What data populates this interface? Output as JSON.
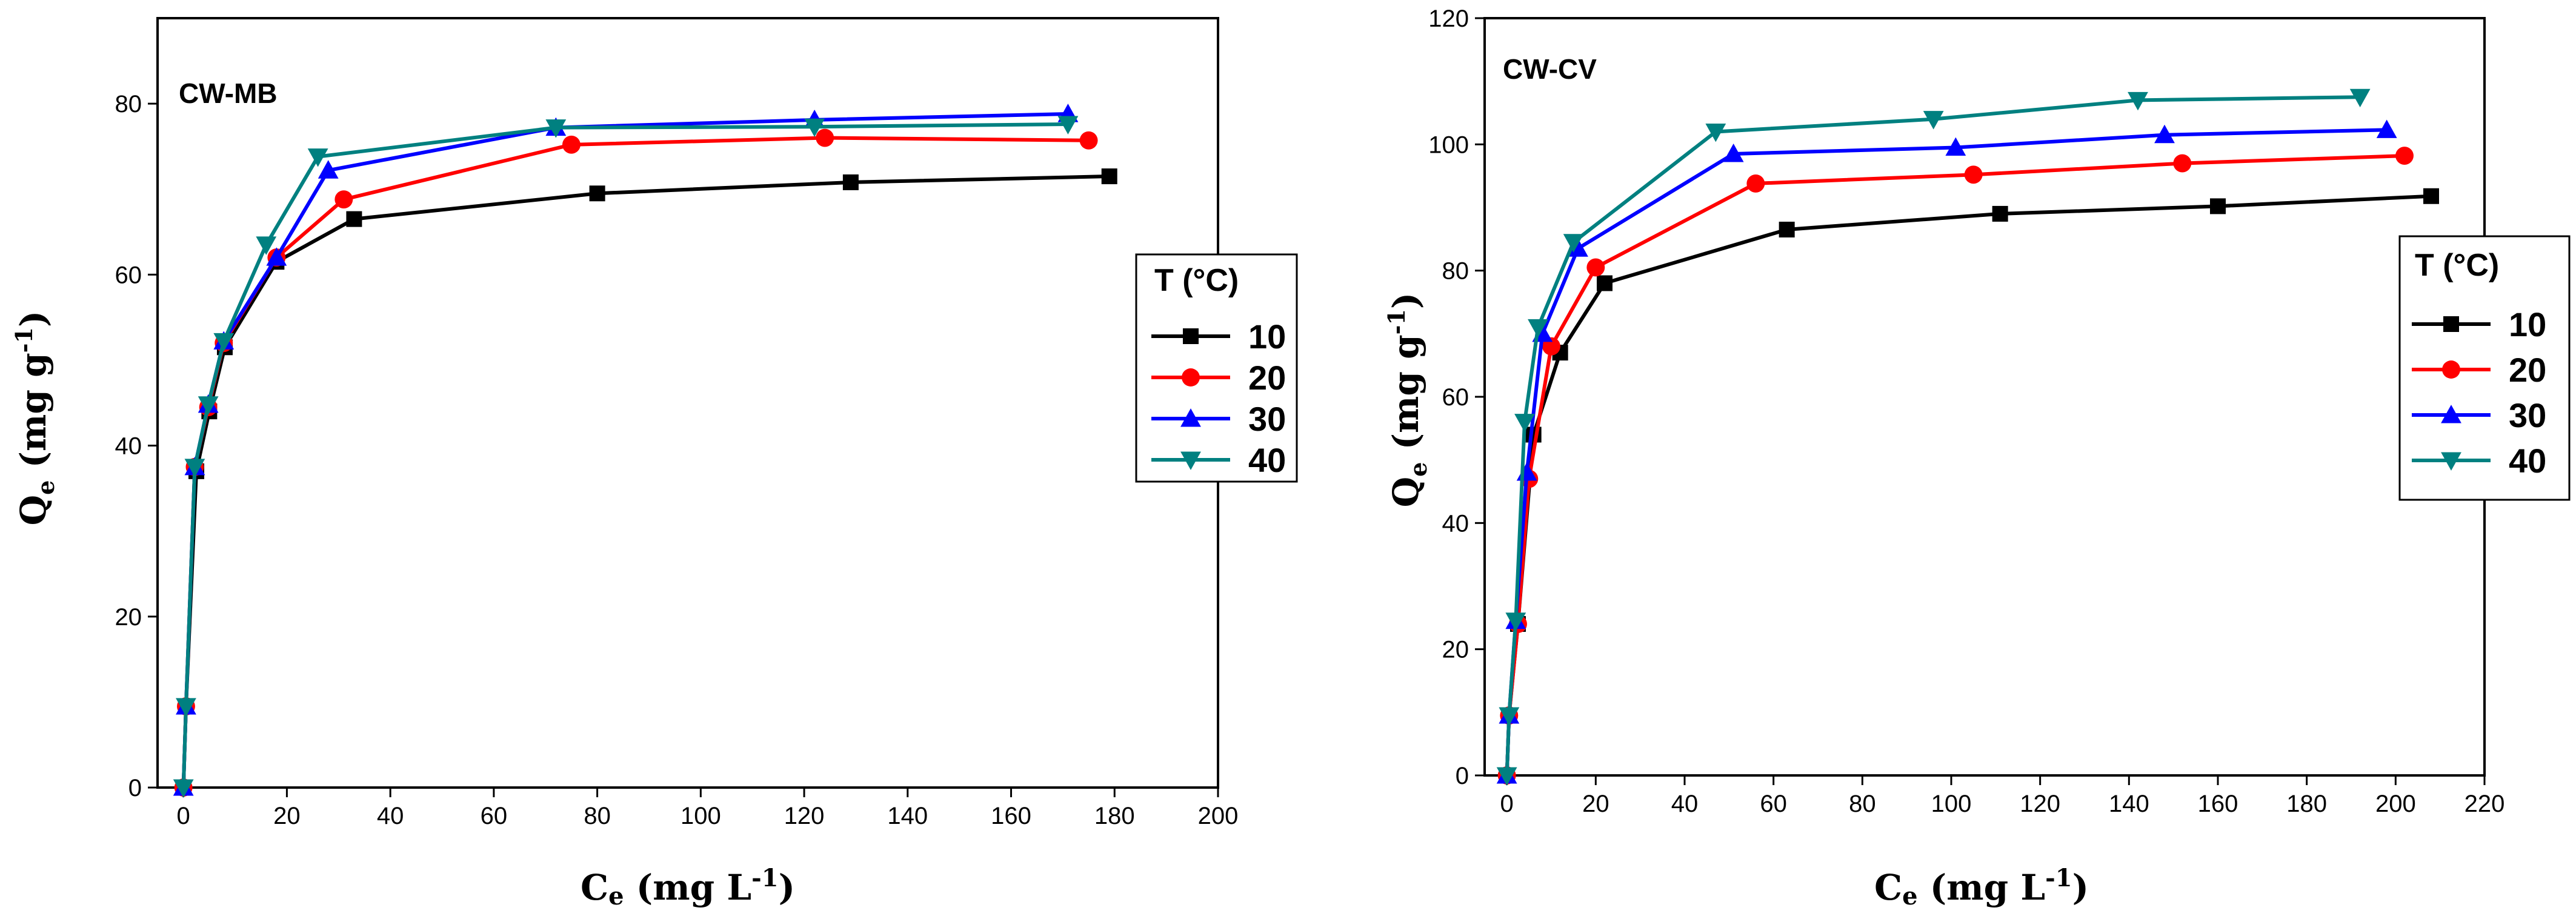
{
  "chart_data": [
    {
      "type": "line",
      "title": "CW-MB",
      "xlabel": "Ce (mg L-1)",
      "ylabel": "Qe (mg g-1)",
      "xlim": [
        -5,
        200
      ],
      "ylim": [
        0,
        90
      ],
      "xticks": [
        0,
        20,
        40,
        60,
        80,
        100,
        120,
        140,
        160,
        180,
        200
      ],
      "yticks": [
        0,
        20,
        40,
        60,
        80
      ],
      "legend_title": "T (°C)",
      "series": [
        {
          "name": "10",
          "color": "#000000",
          "marker": "square",
          "x": [
            0,
            0.5,
            2.5,
            5,
            8,
            18,
            33,
            80,
            129,
            179
          ],
          "y": [
            0,
            9.5,
            37,
            44,
            51.5,
            61.5,
            66.5,
            69.5,
            70.8,
            71.5
          ]
        },
        {
          "name": "20",
          "color": "#ff0000",
          "marker": "circle",
          "x": [
            0,
            0.5,
            2.2,
            4.8,
            7.8,
            18,
            31,
            75,
            124,
            175
          ],
          "y": [
            0,
            9.5,
            37.5,
            44.5,
            52,
            62,
            68.8,
            75.2,
            76,
            75.7
          ]
        },
        {
          "name": "30",
          "color": "#0000ff",
          "marker": "triangle-up",
          "x": [
            0,
            0.5,
            2.2,
            4.8,
            7.8,
            18,
            28,
            72,
            122,
            171
          ],
          "y": [
            0,
            9.5,
            37.5,
            44.8,
            52.2,
            62,
            72.2,
            77.2,
            78.1,
            78.8
          ]
        },
        {
          "name": "40",
          "color": "#008080",
          "marker": "triangle-down",
          "x": [
            0,
            0.5,
            2.2,
            4.8,
            7.8,
            16,
            26,
            72,
            122,
            171
          ],
          "y": [
            0,
            9.5,
            37.5,
            44.8,
            52.2,
            63.5,
            73.8,
            77.2,
            77.3,
            77.6
          ]
        }
      ]
    },
    {
      "type": "line",
      "title": "CW-CV",
      "xlabel": "Ce (mg L-1)",
      "ylabel": "Qe (mg g-1)",
      "xlim": [
        -5,
        220
      ],
      "ylim": [
        0,
        120
      ],
      "xticks": [
        0,
        20,
        40,
        60,
        80,
        100,
        120,
        140,
        160,
        180,
        200,
        220
      ],
      "yticks": [
        0,
        20,
        40,
        60,
        80,
        100,
        120
      ],
      "legend_title": "T (°C)",
      "series": [
        {
          "name": "10",
          "color": "#000000",
          "marker": "square",
          "x": [
            0,
            0.5,
            2.5,
            6,
            12,
            22,
            63,
            111,
            160,
            208
          ],
          "y": [
            0,
            9.5,
            24,
            54,
            67,
            78,
            86.5,
            89,
            90.2,
            91.8
          ]
        },
        {
          "name": "20",
          "color": "#ff0000",
          "marker": "circle",
          "x": [
            0,
            0.5,
            2.5,
            5,
            10,
            20,
            56,
            105,
            152,
            202
          ],
          "y": [
            0,
            9.5,
            24,
            47,
            68,
            80.5,
            93.8,
            95.2,
            97,
            98.2
          ]
        },
        {
          "name": "30",
          "color": "#0000ff",
          "marker": "triangle-up",
          "x": [
            0,
            0.5,
            2,
            4.5,
            8,
            16,
            51,
            101,
            148,
            198
          ],
          "y": [
            0,
            9.5,
            24.5,
            48,
            70,
            83.5,
            98.5,
            99.5,
            101.5,
            102.3
          ]
        },
        {
          "name": "40",
          "color": "#008080",
          "marker": "triangle-down",
          "x": [
            0,
            0.5,
            2,
            4,
            7,
            15,
            47,
            96,
            142,
            192
          ],
          "y": [
            0,
            9.5,
            24.5,
            56,
            71,
            84.5,
            102,
            104,
            107,
            107.5
          ]
        }
      ]
    }
  ]
}
